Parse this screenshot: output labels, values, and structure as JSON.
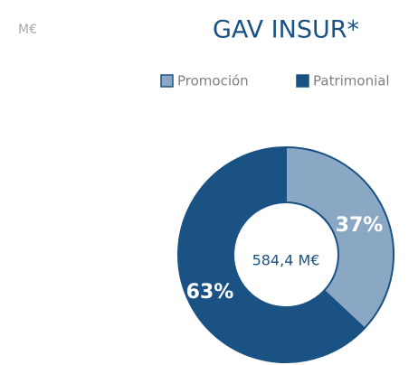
{
  "chart_data": {
    "type": "donut",
    "title": "GAV INSUR*",
    "unit_label": "M€",
    "categories": [
      "Promoción",
      "Patrimonial"
    ],
    "values": [
      37,
      63
    ],
    "value_labels": [
      "37%",
      "63%"
    ],
    "colors": [
      "#8aa8c4",
      "#1a5284"
    ],
    "center_label": "584,4 M€",
    "legend": "top-right"
  }
}
